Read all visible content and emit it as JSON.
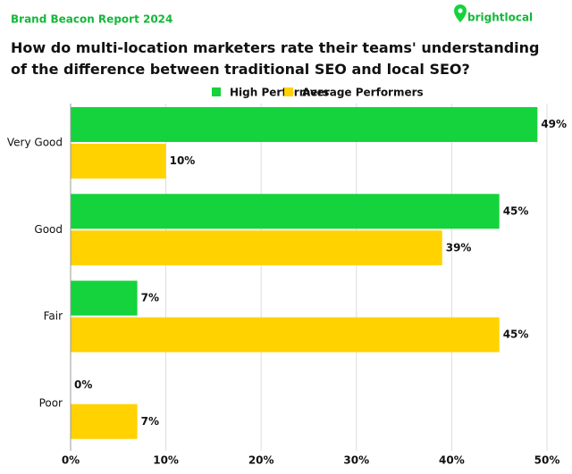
{
  "header": {
    "title": "Brand Beacon Report 2024",
    "logo": "brightlocal"
  },
  "chart_data": {
    "type": "hbar",
    "title": "How do multi-location marketers rate their teams' understanding of the difference between traditional SEO and local SEO?",
    "categories": [
      "Very Good",
      "Good",
      "Fair",
      "Poor"
    ],
    "series": [
      {
        "name": "High Performers",
        "color": "#14d33c",
        "values": [
          49,
          45,
          7,
          0
        ],
        "value_labels": [
          "49%",
          "45%",
          "7%",
          "0%"
        ]
      },
      {
        "name": "Average Performers",
        "color": "#ffd200",
        "values": [
          10,
          39,
          45,
          7
        ],
        "value_labels": [
          "10%",
          "39%",
          "45%",
          "7%"
        ]
      }
    ],
    "xlim": [
      0,
      50
    ],
    "xticks": [
      {
        "value": 0,
        "label": "0%"
      },
      {
        "value": 10,
        "label": "10%"
      },
      {
        "value": 20,
        "label": "20%"
      },
      {
        "value": 30,
        "label": "30%"
      },
      {
        "value": 40,
        "label": "40%"
      },
      {
        "value": 50,
        "label": "50%"
      }
    ],
    "grid": true,
    "legend": "top"
  }
}
